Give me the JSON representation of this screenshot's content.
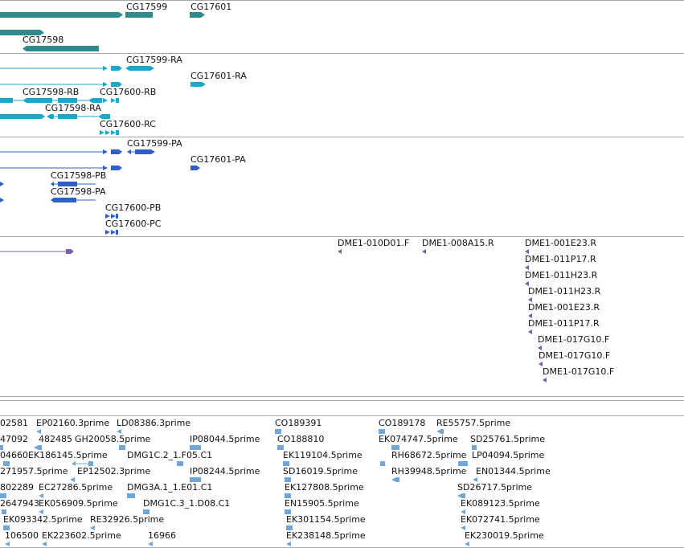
{
  "colors": {
    "gene": "#2e8b8b",
    "transcript": "#19a8c8",
    "protein": "#2f60c8",
    "clone": "#7a5cb0",
    "est": "#6fa8d8",
    "separator": "#a8a8a8"
  },
  "tracks": {
    "genes": [
      {
        "label": "CG17599"
      },
      {
        "label": "CG17601"
      },
      {
        "label": "CG17598"
      }
    ],
    "transcripts": [
      {
        "label": "CG17599-RA"
      },
      {
        "label": "CG17601-RA"
      },
      {
        "label": "CG17598-RB"
      },
      {
        "label": "CG17600-RB"
      },
      {
        "label": "CG17598-RA"
      },
      {
        "label": "CG17600-RC"
      }
    ],
    "proteins": [
      {
        "label": "CG17599-PA"
      },
      {
        "label": "CG17601-PA"
      },
      {
        "label": "CG17598-PB"
      },
      {
        "label": "CG17598-PA"
      },
      {
        "label": "CG17600-PB"
      },
      {
        "label": "CG17600-PC"
      }
    ],
    "clones": [
      {
        "label": "DME1-010D01.F"
      },
      {
        "label": "DME1-008A15.R"
      },
      {
        "label": "DME1-001E23.R"
      },
      {
        "label": "DME1-011P17.R"
      },
      {
        "label": "DME1-011H23.R"
      },
      {
        "label": "DME1-011H23.R"
      },
      {
        "label": "DME1-001E23.R"
      },
      {
        "label": "DME1-011P17.R"
      },
      {
        "label": "DME1-017G10.F"
      },
      {
        "label": "DME1-017G10.F"
      },
      {
        "label": "DME1-017G10.F"
      }
    ],
    "ests": [
      {
        "label": "02581"
      },
      {
        "label": "EP02160.3prime"
      },
      {
        "label": "LD08386.3prime"
      },
      {
        "label": "CO189391"
      },
      {
        "label": "CO189178"
      },
      {
        "label": "RE55757.5prime"
      },
      {
        "label": "47092"
      },
      {
        "label": "482485"
      },
      {
        "label": "GH20058.5prime"
      },
      {
        "label": "IP08044.5prime"
      },
      {
        "label": "CO188810"
      },
      {
        "label": "EK074747.5prime"
      },
      {
        "label": "SD25761.5prime"
      },
      {
        "label": "04660"
      },
      {
        "label": "EK186145.5prime"
      },
      {
        "label": "DMG1C.2_1.F05.C1"
      },
      {
        "label": "EK119104.5prime"
      },
      {
        "label": "RH68672.5prime"
      },
      {
        "label": "LP04094.5prime"
      },
      {
        "label": "271957.5prime"
      },
      {
        "label": "EP12502.3prime"
      },
      {
        "label": "IP08244.5prime"
      },
      {
        "label": "SD16019.5prime"
      },
      {
        "label": "RH39948.5prime"
      },
      {
        "label": "EN01344.5prime"
      },
      {
        "label": "802289"
      },
      {
        "label": "EC27286.5prime"
      },
      {
        "label": "DMG3A.1_1.E01.C1"
      },
      {
        "label": "EK127808.5prime"
      },
      {
        "label": "SD26717.5prime"
      },
      {
        "label": "2647943"
      },
      {
        "label": "EK056909.5prime"
      },
      {
        "label": "DMG1C.3_1.D08.C1"
      },
      {
        "label": "EN15905.5prime"
      },
      {
        "label": "EK089123.5prime"
      },
      {
        "label": "EK093342.5prime"
      },
      {
        "label": "RE32926.5prime"
      },
      {
        "label": "EK301154.5prime"
      },
      {
        "label": "EK072741.5prime"
      },
      {
        "label": "106500"
      },
      {
        "label": "EK223602.5prime"
      },
      {
        "label": "16966"
      },
      {
        "label": "EK238148.5prime"
      },
      {
        "label": "EK230019.5prime"
      }
    ]
  }
}
